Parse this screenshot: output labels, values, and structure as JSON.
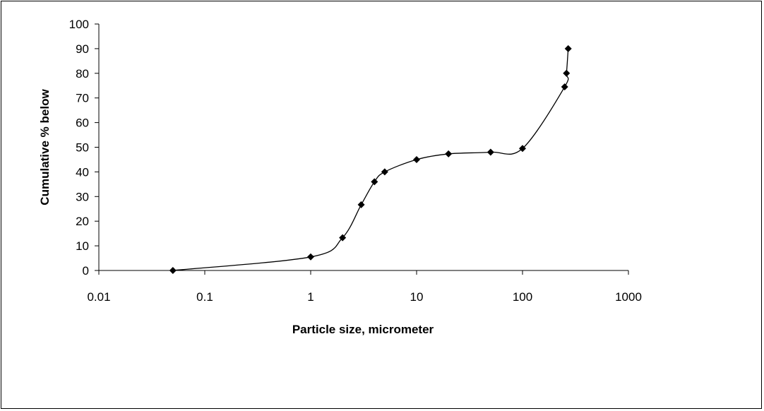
{
  "chart_data": {
    "type": "scatter",
    "title": "",
    "xlabel": "Particle size, micrometer",
    "ylabel": "Cumulative % below",
    "x_scale": "log",
    "xlim": [
      0.01,
      1000
    ],
    "ylim": [
      0,
      100
    ],
    "x_ticks": [
      0.01,
      0.1,
      1,
      10,
      100,
      1000
    ],
    "x_tick_labels": [
      "0.01",
      "0.1",
      "1",
      "10",
      "100",
      "1000"
    ],
    "y_ticks": [
      0,
      10,
      20,
      30,
      40,
      50,
      60,
      70,
      80,
      90,
      100
    ],
    "y_tick_labels": [
      "0",
      "10",
      "20",
      "30",
      "40",
      "50",
      "60",
      "70",
      "80",
      "90",
      "100"
    ],
    "grid": false,
    "line": "smooth",
    "marker": "diamond",
    "series_color": "#000000",
    "series": [
      {
        "x": [
          0.05,
          1,
          2,
          3,
          4,
          5,
          10,
          20,
          50,
          100,
          250,
          260,
          270
        ],
        "y": [
          0,
          5.5,
          13.3,
          26.7,
          36,
          40,
          45,
          47.3,
          48,
          49.5,
          74.5,
          80,
          90
        ]
      }
    ]
  }
}
